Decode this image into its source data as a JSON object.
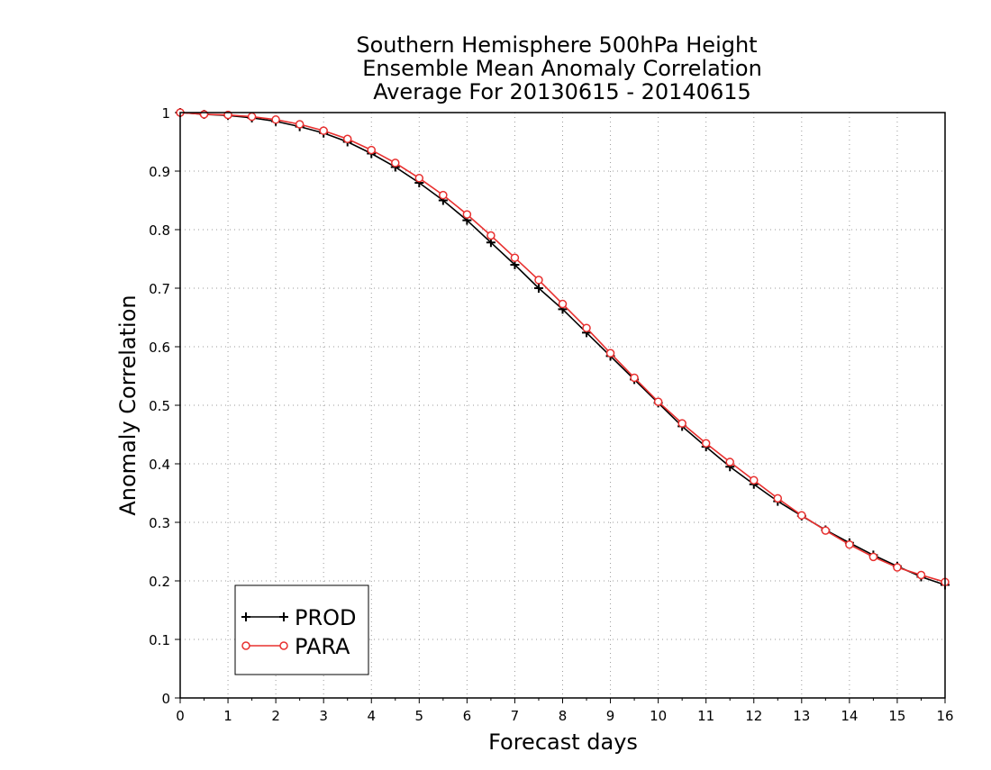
{
  "chart_data": {
    "type": "line",
    "title_lines": [
      "Southern Hemisphere 500hPa Height",
      "Ensemble Mean Anomaly Correlation",
      "Average For 20130615 - 20140615"
    ],
    "xlabel": "Forecast days",
    "ylabel": "Anomaly Correlation",
    "xlim": [
      0,
      16
    ],
    "ylim": [
      0,
      1
    ],
    "x_ticks": [
      0,
      1,
      2,
      3,
      4,
      5,
      6,
      7,
      8,
      9,
      10,
      11,
      12,
      13,
      14,
      15,
      16
    ],
    "y_ticks": [
      0,
      0.1,
      0.2,
      0.3,
      0.4,
      0.5,
      0.6,
      0.7,
      0.8,
      0.9,
      1
    ],
    "x_tick_labels": [
      "0",
      "1",
      "2",
      "3",
      "4",
      "5",
      "6",
      "7",
      "8",
      "9",
      "10",
      "11",
      "12",
      "13",
      "14",
      "15",
      "16"
    ],
    "y_tick_labels": [
      "0",
      "0.1",
      "0.2",
      "0.3",
      "0.4",
      "0.5",
      "0.6",
      "0.7",
      "0.8",
      "0.9",
      "1"
    ],
    "grid": true,
    "legend_position": "bottom-left",
    "x": [
      0,
      0.5,
      1,
      1.5,
      2,
      2.5,
      3,
      3.5,
      4,
      4.5,
      5,
      5.5,
      6,
      6.5,
      7,
      7.5,
      8,
      8.5,
      9,
      9.5,
      10,
      10.5,
      11,
      11.5,
      12,
      12.5,
      13,
      13.5,
      14,
      14.5,
      15,
      15.5,
      16
    ],
    "series": [
      {
        "name": "PROD",
        "color": "#000000",
        "marker": "plus",
        "values": [
          1.0,
          0.997,
          0.995,
          0.991,
          0.985,
          0.976,
          0.965,
          0.95,
          0.93,
          0.907,
          0.88,
          0.85,
          0.816,
          0.778,
          0.74,
          0.7,
          0.664,
          0.624,
          0.584,
          0.544,
          0.504,
          0.464,
          0.429,
          0.395,
          0.365,
          0.336,
          0.311,
          0.287,
          0.265,
          0.244,
          0.225,
          0.207,
          0.193
        ]
      },
      {
        "name": "PARA",
        "color": "#e8302f",
        "marker": "circle",
        "values": [
          1.0,
          0.997,
          0.996,
          0.993,
          0.988,
          0.98,
          0.969,
          0.955,
          0.936,
          0.914,
          0.888,
          0.859,
          0.826,
          0.79,
          0.752,
          0.714,
          0.673,
          0.632,
          0.589,
          0.547,
          0.506,
          0.469,
          0.435,
          0.403,
          0.372,
          0.341,
          0.312,
          0.286,
          0.262,
          0.241,
          0.223,
          0.21,
          0.198
        ]
      }
    ]
  }
}
